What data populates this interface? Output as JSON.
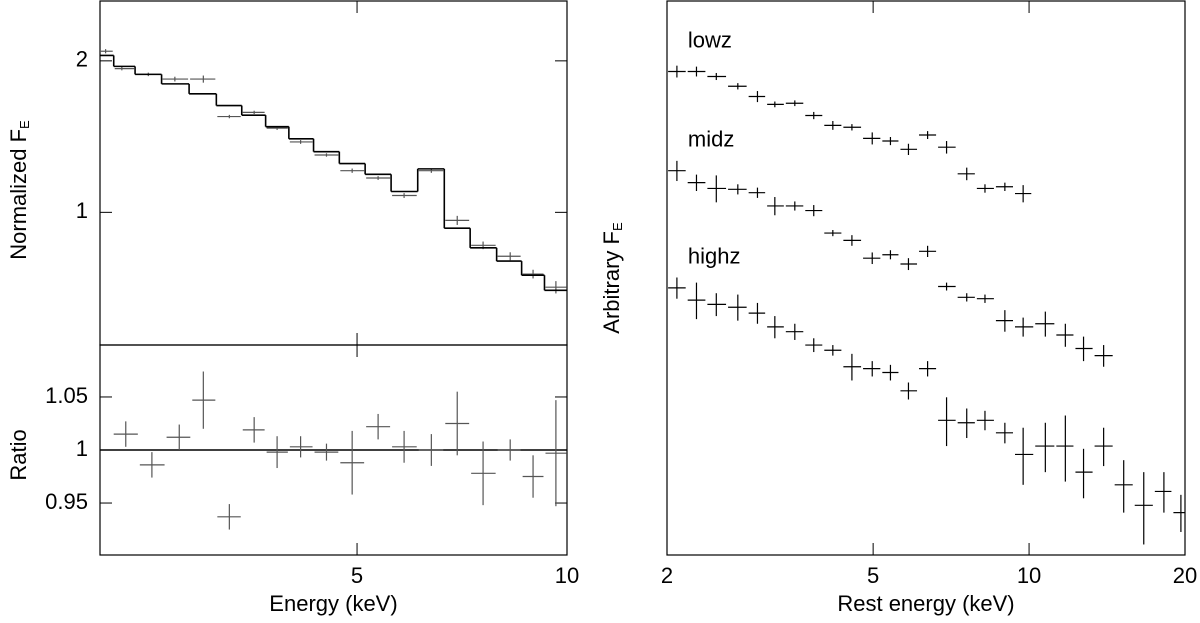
{
  "chart_data": [
    {
      "type": "errorbar",
      "ylabel": "Normalized F",
      "ylabel_sub": "E",
      "xlog": true,
      "ylog": true,
      "xlim": [
        2.14,
        10
      ],
      "ylim": [
        0.545,
        2.63
      ],
      "yticks": [
        1,
        2
      ],
      "color": "#555555",
      "model_color": "#000000",
      "x": [
        2.18,
        2.3,
        2.51,
        2.74,
        3.01,
        3.28,
        3.56,
        3.84,
        4.15,
        4.52,
        4.92,
        5.36,
        5.84,
        6.39,
        6.96,
        7.58,
        8.29,
        8.94,
        9.64
      ],
      "values": [
        2.09,
        1.93,
        1.88,
        1.84,
        1.84,
        1.55,
        1.58,
        1.47,
        1.38,
        1.3,
        1.21,
        1.17,
        1.08,
        1.21,
        0.964,
        0.86,
        0.818,
        0.754,
        0.71
      ],
      "yerr": [
        0.02,
        0.015,
        0.015,
        0.02,
        0.03,
        0.012,
        0.012,
        0.012,
        0.012,
        0.01,
        0.012,
        0.01,
        0.012,
        0.012,
        0.02,
        0.015,
        0.015,
        0.015,
        0.02
      ],
      "model": [
        2.05,
        1.95,
        1.88,
        1.8,
        1.72,
        1.63,
        1.56,
        1.48,
        1.4,
        1.32,
        1.25,
        1.19,
        1.1,
        1.22,
        0.93,
        0.85,
        0.8,
        0.75,
        0.7
      ]
    },
    {
      "type": "errorbar",
      "xlabel": "Energy (keV)",
      "ylabel": "Ratio",
      "xlog": true,
      "ylog": false,
      "xlim": [
        2.14,
        10
      ],
      "ylim": [
        0.901,
        1.099
      ],
      "xticks": [
        5,
        10
      ],
      "yticks": [
        0.95,
        1,
        1.05
      ],
      "reference_line": 1,
      "color": "#555555",
      "x": [
        2.33,
        2.54,
        2.78,
        3.01,
        3.28,
        3.56,
        3.84,
        4.15,
        4.52,
        4.92,
        5.36,
        5.84,
        6.39,
        6.96,
        7.58,
        8.29,
        8.94,
        9.64
      ],
      "values": [
        1.015,
        0.986,
        1.012,
        1.047,
        0.937,
        1.019,
        0.998,
        1.003,
        0.998,
        0.988,
        1.022,
        1.003,
        1.0,
        1.025,
        0.978,
        1.0,
        0.975,
        0.997
      ],
      "yerr": [
        0.012,
        0.012,
        0.012,
        0.027,
        0.012,
        0.012,
        0.015,
        0.01,
        0.008,
        0.03,
        0.012,
        0.015,
        0.015,
        0.03,
        0.03,
        0.01,
        0.02,
        0.05
      ]
    },
    {
      "type": "errorbar",
      "xlabel": "Rest energy (keV)",
      "ylabel": "Arbitrary F",
      "ylabel_sub": "E",
      "xlog": true,
      "ylog": true,
      "xlim": [
        2,
        20
      ],
      "ylim": [
        0.486,
        6.13
      ],
      "xticks": [
        2,
        5,
        10,
        20
      ],
      "series": [
        {
          "name": "lowz",
          "color": "#000000",
          "x": [
            2.09,
            2.28,
            2.49,
            2.74,
            2.99,
            3.23,
            3.53,
            3.84,
            4.18,
            4.55,
            4.98,
            5.4,
            5.85,
            6.37,
            6.93,
            7.58,
            8.22,
            8.98,
            9.74
          ],
          "values": [
            4.44,
            4.44,
            4.34,
            4.15,
            3.96,
            3.82,
            3.84,
            3.63,
            3.47,
            3.44,
            3.27,
            3.23,
            3.11,
            3.32,
            3.14,
            2.78,
            2.6,
            2.62,
            2.54
          ],
          "yerr": [
            0.12,
            0.1,
            0.07,
            0.06,
            0.1,
            0.05,
            0.05,
            0.06,
            0.07,
            0.05,
            0.09,
            0.06,
            0.08,
            0.06,
            0.09,
            0.08,
            0.05,
            0.05,
            0.1
          ]
        },
        {
          "name": "midz",
          "color": "#000000",
          "x": [
            2.09,
            2.28,
            2.49,
            2.74,
            2.99,
            3.23,
            3.53,
            3.84,
            4.18,
            4.55,
            4.98,
            5.4,
            5.85,
            6.37,
            6.93,
            7.58,
            8.22,
            8.98,
            9.74,
            10.75,
            11.75,
            12.74,
            13.93
          ],
          "values": [
            2.82,
            2.67,
            2.6,
            2.59,
            2.55,
            2.4,
            2.4,
            2.35,
            2.12,
            2.05,
            1.89,
            1.92,
            1.84,
            1.95,
            1.66,
            1.58,
            1.57,
            1.42,
            1.38,
            1.4,
            1.33,
            1.25,
            1.21
          ],
          "yerr": [
            0.13,
            0.1,
            0.16,
            0.06,
            0.06,
            0.1,
            0.05,
            0.06,
            0.03,
            0.05,
            0.05,
            0.04,
            0.05,
            0.05,
            0.03,
            0.03,
            0.03,
            0.07,
            0.06,
            0.08,
            0.07,
            0.07,
            0.06
          ]
        },
        {
          "name": "highz",
          "color": "#000000",
          "x": [
            2.09,
            2.28,
            2.49,
            2.74,
            2.99,
            3.23,
            3.53,
            3.84,
            4.18,
            4.55,
            4.98,
            5.4,
            5.85,
            6.37,
            6.93,
            7.58,
            8.22,
            8.98,
            9.74,
            10.75,
            11.75,
            12.74,
            13.93,
            15.23,
            16.65,
            18.21,
            19.64
          ],
          "values": [
            1.65,
            1.56,
            1.53,
            1.51,
            1.47,
            1.38,
            1.35,
            1.27,
            1.24,
            1.15,
            1.14,
            1.12,
            1.03,
            1.14,
            0.9,
            0.89,
            0.9,
            0.85,
            0.77,
            0.8,
            0.8,
            0.71,
            0.8,
            0.67,
            0.61,
            0.65,
            0.59
          ],
          "yerr": [
            0.08,
            0.13,
            0.08,
            0.09,
            0.07,
            0.07,
            0.05,
            0.04,
            0.03,
            0.07,
            0.04,
            0.04,
            0.04,
            0.04,
            0.1,
            0.06,
            0.04,
            0.04,
            0.1,
            0.09,
            0.12,
            0.08,
            0.07,
            0.08,
            0.1,
            0.06,
            0.05
          ]
        }
      ]
    }
  ]
}
